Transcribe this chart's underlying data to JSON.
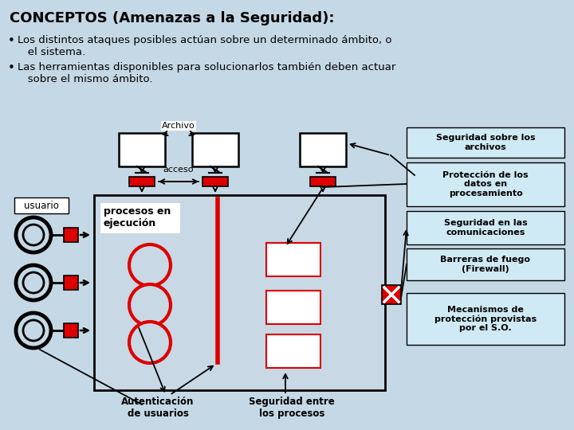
{
  "title": "CONCEPTOS (Amenazas a la Seguridad):",
  "bullet1": "Los distintos ataques posibles actúan sobre un determinado ámbito, o\n   el sistema.",
  "bullet2": "Las herramientas disponibles para solucionarlos también deben actuar\n   sobre el mismo ámbito.",
  "bg_color": "#c5d8e5",
  "main_box_color": "#c8d8e4",
  "right_box_color": "#d0eaf5",
  "label_archivo": "Archivo",
  "label_acceso": "acceso",
  "label_usuario": "usuario",
  "label_procesos": "procesos en\nejecución",
  "label_autenticacion": "Autenticación\nde usuarios",
  "label_seguridad_procesos": "Seguridad entre\nlos procesos",
  "right_labels": [
    "Seguridad sobre los\narchivos",
    "Protección de los\ndatos en\nprocesamiento",
    "Seguridad en las\ncomunicaciones",
    "Barreras de fuego\n(Firewall)",
    "Mecanismos de\nprotección provistas\npor el S.O."
  ],
  "red": "#dd0000",
  "white": "#ffffff",
  "black": "#000000"
}
